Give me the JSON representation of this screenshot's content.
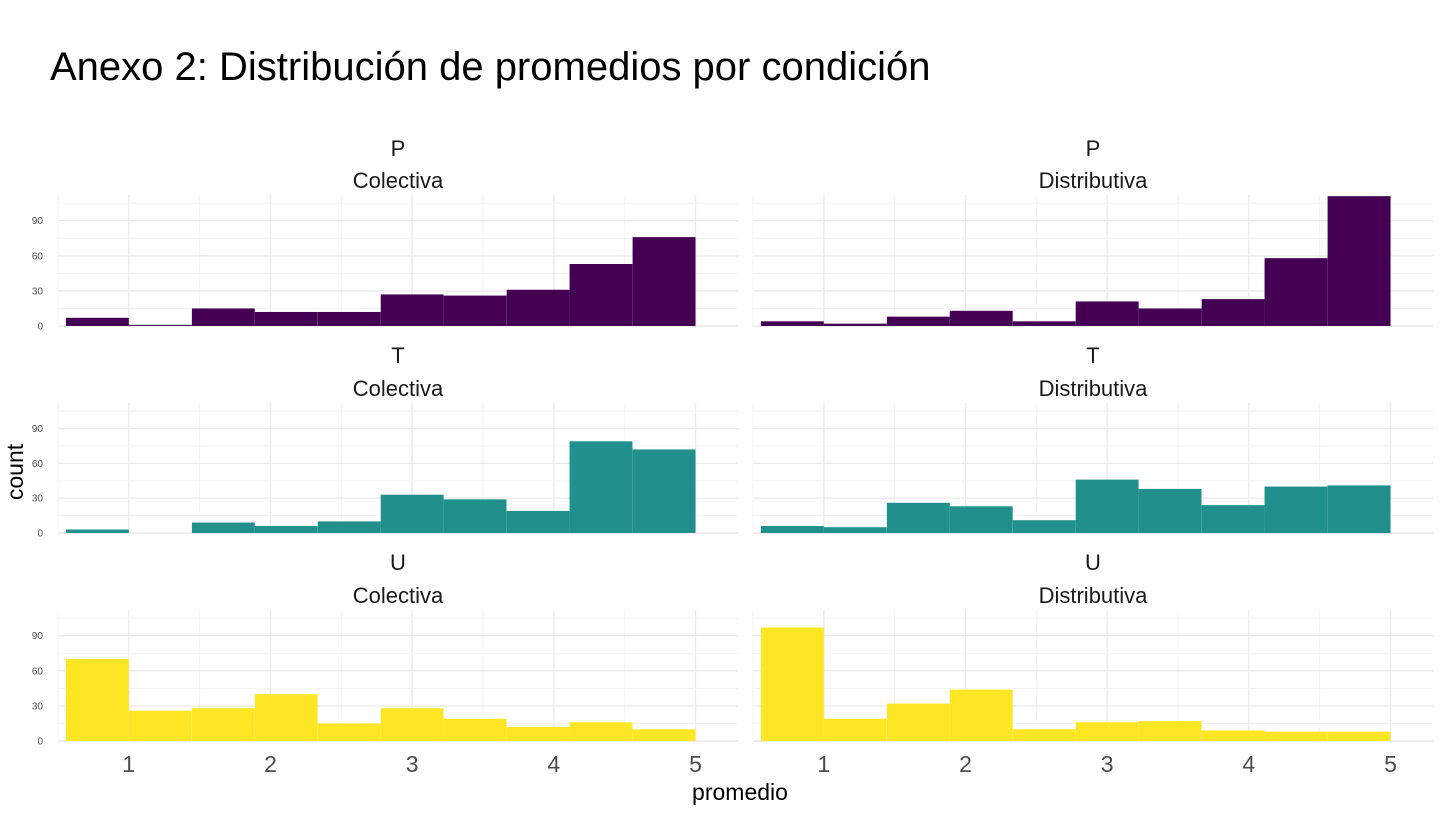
{
  "chart_data": {
    "type": "bar",
    "title": "Anexo 2: Distribución de promedios por condición",
    "xlabel": "promedio",
    "ylabel": "count",
    "bins_x": [
      0.778,
      1.222,
      1.667,
      2.111,
      2.556,
      3.0,
      3.444,
      3.889,
      4.333,
      4.778
    ],
    "bin_width": 0.444,
    "xlim": [
      0.5,
      5.3
    ],
    "xticks": [
      "1",
      "2",
      "3",
      "4",
      "5"
    ],
    "ylim": [
      0,
      112
    ],
    "yticks": [
      "0",
      "30",
      "60",
      "90"
    ],
    "grid": true,
    "legend": "none",
    "panels": [
      {
        "row": "P",
        "col": "Colectiva",
        "color": "#440154",
        "values": [
          7,
          1,
          15,
          12,
          12,
          27,
          26,
          31,
          53,
          76
        ]
      },
      {
        "row": "P",
        "col": "Distributiva",
        "color": "#440154",
        "values": [
          4,
          2,
          8,
          13,
          4,
          21,
          15,
          23,
          58,
          111
        ]
      },
      {
        "row": "T",
        "col": "Colectiva",
        "color": "#21908C",
        "values": [
          3,
          0,
          9,
          6,
          10,
          33,
          29,
          19,
          79,
          72
        ]
      },
      {
        "row": "T",
        "col": "Distributiva",
        "color": "#21908C",
        "values": [
          6,
          5,
          26,
          23,
          11,
          46,
          38,
          24,
          40,
          41
        ]
      },
      {
        "row": "U",
        "col": "Colectiva",
        "color": "#FDE725",
        "values": [
          70,
          26,
          28,
          40,
          15,
          28,
          19,
          12,
          16,
          10
        ]
      },
      {
        "row": "U",
        "col": "Distributiva",
        "color": "#FDE725",
        "values": [
          97,
          19,
          32,
          44,
          10,
          16,
          17,
          9,
          8,
          8
        ]
      }
    ]
  }
}
